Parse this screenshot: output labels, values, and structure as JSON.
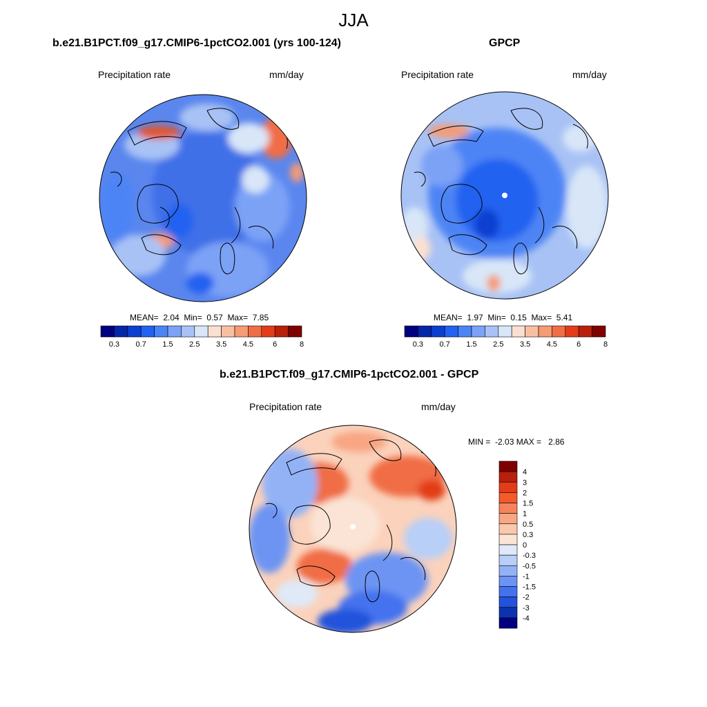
{
  "figure": {
    "title": "JJA"
  },
  "panels": [
    {
      "title": "b.e21.B1PCT.f09_g17.CMIP6-1pctCO2.001 (yrs 100-124)",
      "left_label": "Precipitation rate",
      "right_label": "mm/day",
      "stats": {
        "mean_label": "MEAN=",
        "mean": "2.04",
        "min_label": "Min=",
        "min": "0.57",
        "max_label": "Max=",
        "max": "7.85"
      },
      "colorbar": {
        "levels": [
          "0.3",
          "0.7",
          "1.5",
          "2.5",
          "3.5",
          "4.5",
          "6",
          "8"
        ],
        "colors": [
          "#000080",
          "#0526a8",
          "#0c3fd0",
          "#2262f0",
          "#4d84f5",
          "#7ba2f6",
          "#a8c2f5",
          "#d8e6f8",
          "#fbe0d2",
          "#f8c0a3",
          "#f59b75",
          "#f06d45",
          "#e23c18",
          "#b8200c",
          "#800000"
        ]
      }
    },
    {
      "title": "GPCP",
      "left_label": "Precipitation rate",
      "right_label": "mm/day",
      "stats": {
        "mean_label": "MEAN=",
        "mean": "1.97",
        "min_label": "Min=",
        "min": "0.15",
        "max_label": "Max=",
        "max": "5.41"
      },
      "colorbar": {
        "levels": [
          "0.3",
          "0.7",
          "1.5",
          "2.5",
          "3.5",
          "4.5",
          "6",
          "8"
        ],
        "colors": [
          "#000080",
          "#0526a8",
          "#0c3fd0",
          "#2262f0",
          "#4d84f5",
          "#7ba2f6",
          "#a8c2f5",
          "#d8e6f8",
          "#fbe0d2",
          "#f8c0a3",
          "#f59b75",
          "#f06d45",
          "#e23c18",
          "#b8200c",
          "#800000"
        ]
      }
    },
    {
      "title": "b.e21.B1PCT.f09_g17.CMIP6-1pctCO2.001 - GPCP",
      "left_label": "Precipitation rate",
      "right_label": "mm/day",
      "stats": {
        "min_label": "MIN =",
        "min": "-2.03",
        "max_label": "MAX =",
        "max": "2.86"
      },
      "colorbar": {
        "levels": [
          "4",
          "3",
          "2",
          "1.5",
          "1",
          "0.5",
          "0.3",
          "0",
          "-0.3",
          "-0.5",
          "-1",
          "-1.5",
          "-2",
          "-3",
          "-4"
        ],
        "colors": [
          "#800000",
          "#b8200c",
          "#e23c18",
          "#f55a2a",
          "#f5845c",
          "#f8a683",
          "#fbc8ad",
          "#fbe4d6",
          "#dfe9f8",
          "#b8cff7",
          "#93b2f6",
          "#6d94f3",
          "#4472ee",
          "#2352db",
          "#0c32b0",
          "#000080"
        ]
      }
    }
  ],
  "map_colors": {
    "ocean_base": "#6f96ef",
    "coastline": "#000000"
  }
}
